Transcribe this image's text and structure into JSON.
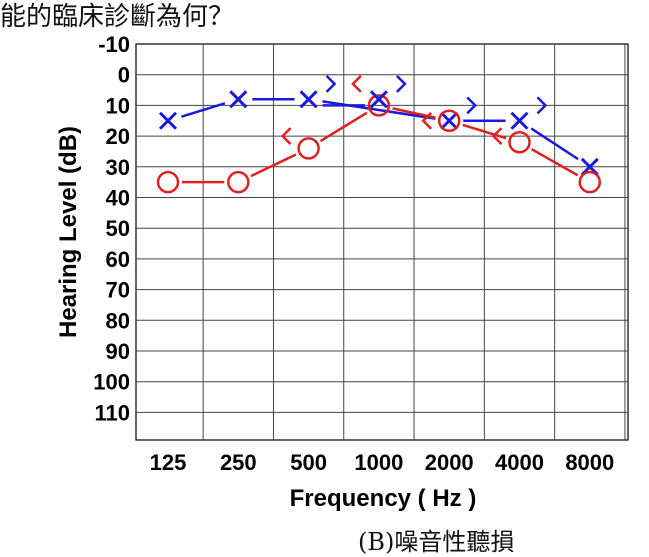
{
  "header_text": "能的臨床診斷為何？",
  "footer_text": "(B)噪音性聽損",
  "chart_data": {
    "type": "line",
    "title": "",
    "xlabel": "Frequency ( Hz )",
    "ylabel": "Hearing Level (dB)",
    "categories": [
      "125",
      "250",
      "500",
      "1000",
      "2000",
      "4000",
      "8000"
    ],
    "y_ticks": [
      -10,
      0,
      10,
      20,
      30,
      40,
      50,
      60,
      70,
      80,
      90,
      100,
      110
    ],
    "ylim": [
      -10,
      120
    ],
    "y_inverted": true,
    "grid": true,
    "series": [
      {
        "symbol": "X",
        "color": "#1a1adc",
        "values": [
          15,
          8,
          8,
          null,
          15,
          15,
          30
        ]
      },
      {
        "symbol": "O",
        "color": "#e02020",
        "values": [
          35,
          35,
          24,
          10,
          15,
          22,
          35
        ]
      }
    ],
    "bone_conduction": [
      {
        "symbol": ">",
        "color": "#1a1adc",
        "points": [
          [
            2,
            3
          ],
          [
            3,
            3
          ],
          [
            4,
            10
          ],
          [
            5,
            10
          ]
        ]
      },
      {
        "symbol": "<",
        "color": "#e02020",
        "points": [
          [
            2,
            20
          ],
          [
            3,
            3
          ],
          [
            4,
            15
          ],
          [
            5,
            20
          ]
        ]
      }
    ],
    "x_connector": {
      "color": "#1a1adc",
      "from": [
        2,
        10
      ],
      "to": [
        3,
        10
      ]
    }
  }
}
